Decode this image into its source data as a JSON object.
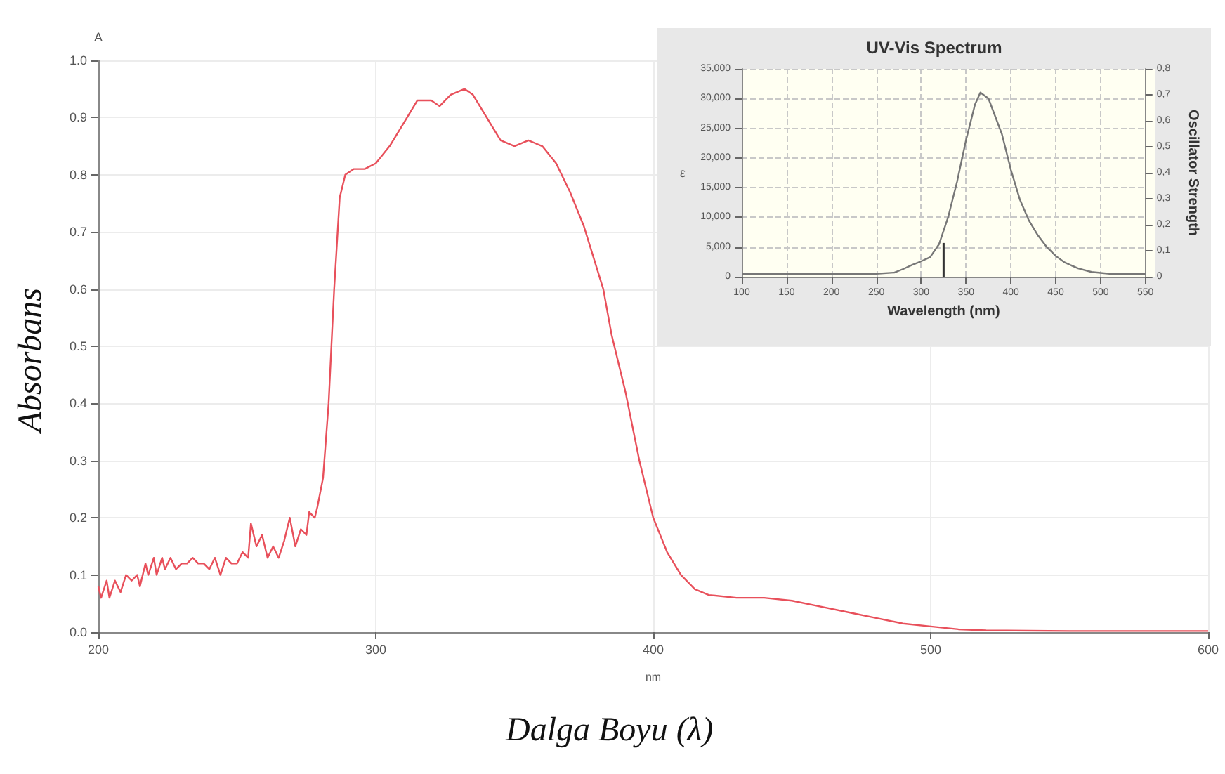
{
  "chart_data": [
    {
      "type": "line",
      "xlabel": "nm",
      "ylabel": "A",
      "annotations": [
        "Absorbans",
        "Dalga Boyu (λ)"
      ],
      "grid": true,
      "line_style": "solid",
      "xlim": [
        200,
        600
      ],
      "xticks": [
        200,
        300,
        400,
        500,
        600
      ],
      "ylim": [
        0,
        1
      ],
      "yticks": [
        {
          "value": 0,
          "label": "0.0"
        },
        0.1,
        0.2,
        0.3,
        0.4,
        0.5,
        0.6,
        0.7,
        0.8,
        0.9,
        {
          "value": 1,
          "label": "1.0"
        }
      ],
      "series": [
        {
          "color": "#e8505b",
          "x": [
            200,
            201,
            203,
            204,
            206,
            208,
            210,
            212,
            214,
            215,
            217,
            218,
            220,
            221,
            223,
            224,
            226,
            228,
            230,
            232,
            234,
            236,
            238,
            240,
            242,
            244,
            246,
            248,
            250,
            252,
            254,
            255,
            257,
            259,
            261,
            263,
            265,
            267,
            269,
            271,
            273,
            275,
            276,
            278,
            279,
            281,
            283,
            285,
            287,
            289,
            292,
            296,
            300,
            305,
            310,
            315,
            320,
            323,
            327,
            332,
            335,
            340,
            345,
            350,
            355,
            360,
            365,
            370,
            375,
            382,
            385,
            390,
            395,
            400,
            405,
            410,
            415,
            420,
            430,
            440,
            450,
            460,
            470,
            480,
            490,
            500,
            510,
            520,
            550,
            600
          ],
          "values": [
            0.08,
            0.06,
            0.09,
            0.06,
            0.09,
            0.07,
            0.1,
            0.09,
            0.1,
            0.08,
            0.12,
            0.1,
            0.13,
            0.1,
            0.13,
            0.11,
            0.13,
            0.11,
            0.12,
            0.12,
            0.13,
            0.12,
            0.12,
            0.11,
            0.13,
            0.1,
            0.13,
            0.12,
            0.12,
            0.14,
            0.13,
            0.19,
            0.15,
            0.17,
            0.13,
            0.15,
            0.13,
            0.16,
            0.2,
            0.15,
            0.18,
            0.17,
            0.21,
            0.2,
            0.22,
            0.27,
            0.4,
            0.6,
            0.76,
            0.8,
            0.81,
            0.81,
            0.82,
            0.85,
            0.89,
            0.93,
            0.93,
            0.92,
            0.94,
            0.95,
            0.94,
            0.9,
            0.86,
            0.85,
            0.86,
            0.85,
            0.82,
            0.77,
            0.71,
            0.6,
            0.52,
            0.42,
            0.3,
            0.2,
            0.14,
            0.1,
            0.075,
            0.065,
            0.06,
            0.06,
            0.055,
            0.045,
            0.035,
            0.025,
            0.015,
            0.01,
            0.005,
            0.003,
            0.002,
            0.002
          ]
        }
      ]
    },
    {
      "type": "line",
      "title": "UV-Vis Spectrum",
      "xlabel": "Wavelength (nm)",
      "ylabel": "ε",
      "y2label": "Oscillator Strength",
      "grid": true,
      "xlim": [
        100,
        550
      ],
      "xticks": [
        100,
        150,
        200,
        250,
        300,
        350,
        400,
        450,
        500,
        550
      ],
      "ylim": [
        0,
        35000
      ],
      "yticks": [
        0,
        {
          "value": 5000,
          "label": "5,000"
        },
        {
          "value": 10000,
          "label": "10,000"
        },
        {
          "value": 15000,
          "label": "15,000"
        },
        {
          "value": 20000,
          "label": "20,000"
        },
        {
          "value": 25000,
          "label": "25,000"
        },
        {
          "value": 30000,
          "label": "30,000"
        },
        {
          "value": 35000,
          "label": "35,000"
        }
      ],
      "y2lim": [
        0,
        0.8
      ],
      "y2ticks": [
        0,
        {
          "value": 0.1,
          "label": "0,1"
        },
        {
          "value": 0.2,
          "label": "0,2"
        },
        {
          "value": 0.3,
          "label": "0,3"
        },
        {
          "value": 0.4,
          "label": "0,4"
        },
        {
          "value": 0.5,
          "label": "0,5"
        },
        {
          "value": 0.6,
          "label": "0,6"
        },
        {
          "value": 0.7,
          "label": "0,7"
        },
        {
          "value": 0.8,
          "label": "0,8"
        }
      ],
      "series": [
        {
          "color": "#777777",
          "x": [
            100,
            250,
            270,
            280,
            290,
            300,
            310,
            320,
            330,
            340,
            350,
            360,
            366,
            375,
            390,
            400,
            410,
            420,
            430,
            440,
            450,
            460,
            475,
            490,
            510,
            550
          ],
          "values": [
            500,
            500,
            700,
            1300,
            2000,
            2600,
            3300,
            5500,
            10000,
            16000,
            23000,
            29000,
            31000,
            30000,
            24000,
            18000,
            13000,
            9500,
            7000,
            5000,
            3500,
            2400,
            1400,
            800,
            500,
            500
          ]
        },
        {
          "type": "bar",
          "axis": "y2",
          "color": "#333333",
          "x": [
            325
          ],
          "values": [
            0.13
          ]
        }
      ]
    }
  ]
}
